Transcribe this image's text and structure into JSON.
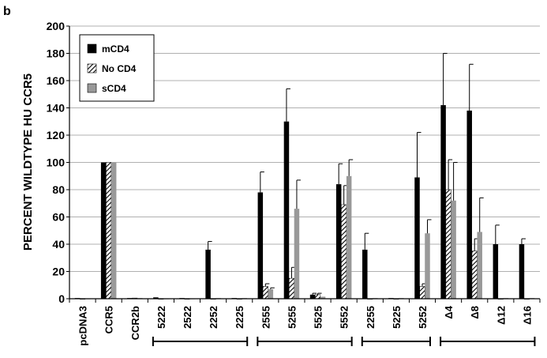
{
  "chart_data": {
    "type": "bar",
    "panel_label": "b",
    "ylabel": "PERCENT WILDTYPE HU CCR5",
    "xlabel": "",
    "ylim": [
      0,
      200
    ],
    "yticks": [
      0,
      20,
      40,
      60,
      80,
      100,
      120,
      140,
      160,
      180,
      200
    ],
    "grid": true,
    "legend_position": "top-left",
    "categories": [
      "pcDNA3",
      "CCR5",
      "CCR2b",
      "5222",
      "2522",
      "2252",
      "2225",
      "2555",
      "5255",
      "5525",
      "5552",
      "2255",
      "5225",
      "5252",
      "Δ4",
      "Δ8",
      "Δ12",
      "Δ16"
    ],
    "series": [
      {
        "name": "mCD4",
        "color": "#000000",
        "pattern": "solid",
        "values": [
          0.5,
          100,
          0.5,
          1,
          0.5,
          36,
          0.5,
          78,
          130,
          3,
          84,
          36,
          0.5,
          89,
          142,
          138,
          40,
          40
        ],
        "errors": [
          0,
          0,
          0,
          0,
          0,
          6,
          0,
          15,
          24,
          1,
          15,
          12,
          0,
          33,
          38,
          34,
          14,
          4
        ]
      },
      {
        "name": "No CD4",
        "color": "#000000",
        "pattern": "hatched",
        "values": [
          0,
          100,
          0.5,
          0,
          0,
          0,
          0,
          9,
          15,
          3,
          69,
          0,
          0,
          9,
          80,
          35,
          0,
          0
        ],
        "errors": [
          0,
          0,
          0,
          0,
          0,
          0,
          0,
          2,
          8,
          1,
          14,
          0,
          0,
          2,
          22,
          9,
          0,
          0
        ]
      },
      {
        "name": "sCD4",
        "color": "#999999",
        "pattern": "solid",
        "values": [
          0,
          100,
          0.5,
          0,
          0,
          0.5,
          0.5,
          7,
          66,
          1.5,
          90,
          0.5,
          0.5,
          48,
          72,
          49,
          0.5,
          0.5
        ],
        "errors": [
          0,
          0,
          0,
          0,
          0,
          0,
          0,
          1,
          21,
          0,
          12,
          0,
          0,
          10,
          28,
          25,
          0,
          0
        ]
      }
    ],
    "brackets": [
      {
        "from": "5222",
        "to": "2225"
      },
      {
        "from": "2555",
        "to": "5552"
      },
      {
        "from": "2255",
        "to": "5252"
      },
      {
        "from": "Δ4",
        "to": "Δ16"
      }
    ]
  }
}
